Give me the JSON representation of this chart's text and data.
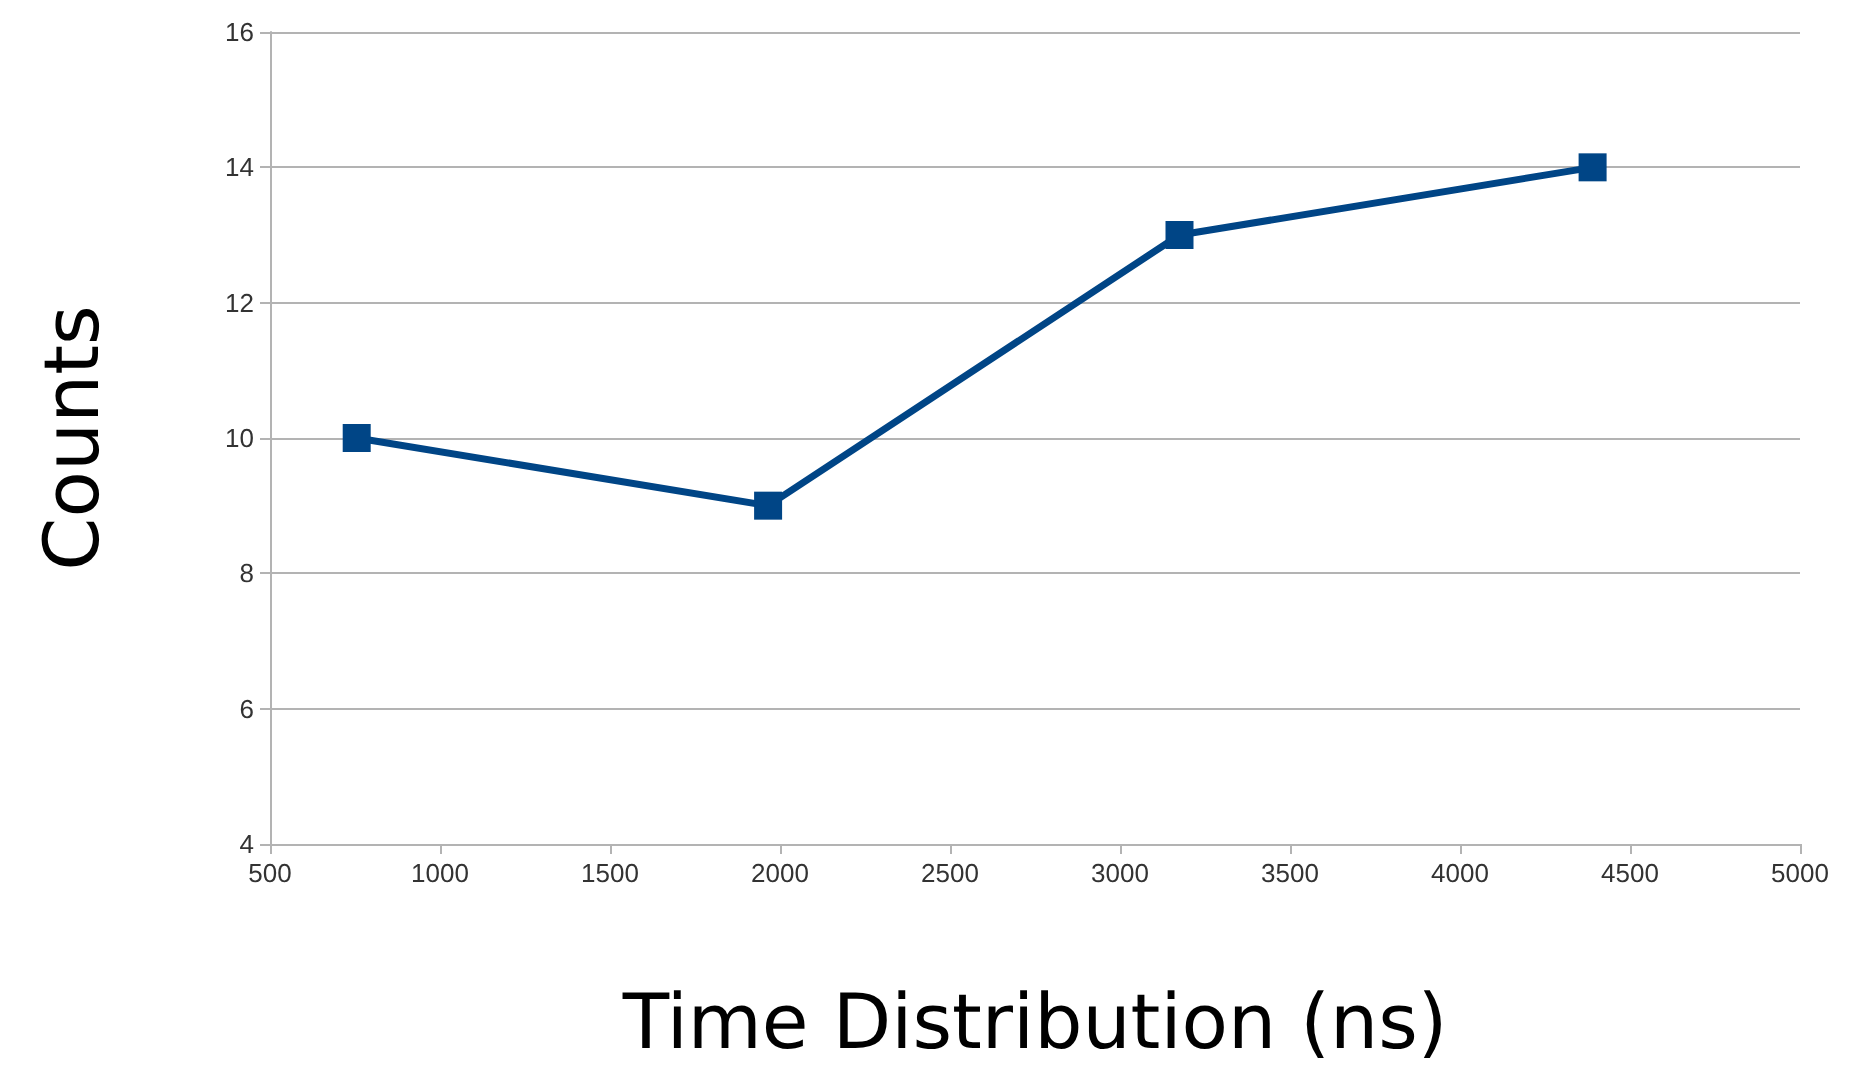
{
  "chart_data": {
    "type": "line",
    "xlabel": "Time Distribution (ns)",
    "ylabel": "Counts",
    "x": [
      755,
      1965,
      3175,
      4390
    ],
    "series": [
      {
        "color": "#004586",
        "values": [
          10,
          9,
          13,
          14
        ]
      }
    ],
    "xlim": [
      500,
      5000
    ],
    "xticks": [
      500,
      1000,
      1500,
      2000,
      2500,
      3000,
      3500,
      4000,
      4500,
      5000
    ],
    "ylim": [
      4,
      16
    ],
    "yticks": [
      4,
      6,
      8,
      10,
      12,
      14,
      16
    ],
    "grid": "y",
    "marker": "square",
    "line_style": "solid"
  }
}
